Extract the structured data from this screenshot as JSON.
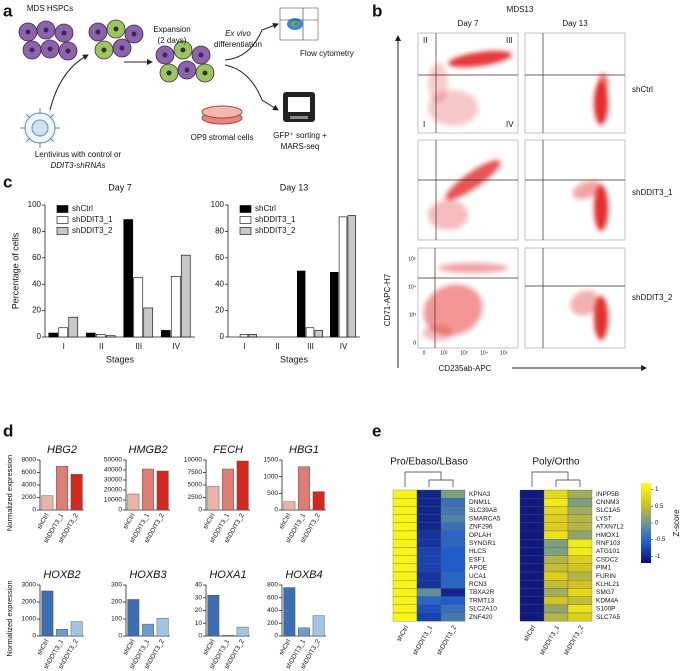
{
  "panel_labels": [
    "a",
    "b",
    "c",
    "d",
    "e"
  ],
  "diagram_a": {
    "source": "MDS HSPCs",
    "expansion": [
      "Expansion",
      "(2 days)"
    ],
    "differentiation": [
      "Ex vivo",
      "differentiation"
    ],
    "flow": "Flow cytometry",
    "stroma": "OP9 stromal cells",
    "sorting": [
      "GFP⁺ sorting +",
      "MARS-seq"
    ],
    "virus": [
      "Lentivirus with control or",
      "DDIT3-shRNAs"
    ]
  },
  "flow_b": {
    "title": "MDS13",
    "columns": [
      "Day 7",
      "Day 13"
    ],
    "rows": [
      "shCtrl",
      "shDDIT3_1",
      "shDDIT3_2"
    ],
    "quadrants": [
      "II",
      "III",
      "I",
      "IV"
    ],
    "y_label": "CD71-APC-H7",
    "x_label": "CD235ab-APC",
    "x_tick_labels": [
      "0",
      "10²",
      "10³",
      "10⁴",
      "10⁵"
    ],
    "y_tick_labels": [
      "0",
      "10³",
      "10⁴",
      "10⁵"
    ]
  },
  "chart_data": [
    {
      "type": "bar",
      "title": "Day 7",
      "x_label": "Stages",
      "y_label": "Percentage of cells",
      "categories": [
        "I",
        "II",
        "III",
        "IV"
      ],
      "ylim": [
        0,
        100
      ],
      "yticks": [
        0,
        20,
        40,
        60,
        80,
        100
      ],
      "series": [
        {
          "name": "shCtrl",
          "color": "#000000",
          "values": [
            3,
            3,
            89,
            5
          ]
        },
        {
          "name": "shDDIT3_1",
          "color": "#ffffff",
          "values": [
            7,
            2,
            45,
            46
          ]
        },
        {
          "name": "shDDIT3_2",
          "color": "#c8c8c8",
          "values": [
            15,
            1,
            22,
            62
          ]
        }
      ]
    },
    {
      "type": "bar",
      "title": "Day 13",
      "x_label": "Stages",
      "categories": [
        "I",
        "II",
        "III",
        "IV"
      ],
      "ylim": [
        0,
        100
      ],
      "yticks": [
        0,
        20,
        40,
        60,
        80,
        100
      ],
      "series": [
        {
          "name": "shCtrl",
          "color": "#000000",
          "values": [
            0,
            0,
            50,
            49
          ]
        },
        {
          "name": "shDDIT3_1",
          "color": "#ffffff",
          "values": [
            2,
            0,
            7,
            91
          ]
        },
        {
          "name": "shDDIT3_2",
          "color": "#c8c8c8",
          "values": [
            2,
            0,
            5,
            92
          ]
        }
      ]
    },
    {
      "type": "bar",
      "title": "HBG2",
      "y_label": "Normalized expression",
      "categories": [
        "shCtrl",
        "shDDIT3_1",
        "shDDIT3_2"
      ],
      "values": [
        2300,
        7000,
        5700
      ],
      "colors": [
        "#e9b3a8",
        "#de7d74",
        "#d3281f"
      ],
      "ylim": [
        0,
        8000
      ],
      "yticks": [
        0,
        2000,
        4000,
        6000,
        8000
      ]
    },
    {
      "type": "bar",
      "title": "HMGB2",
      "categories": [
        "shCtrl",
        "shDDIT3_1",
        "shDDIT3_2"
      ],
      "values": [
        16000,
        41000,
        39000
      ],
      "colors": [
        "#e9b3a8",
        "#de7d74",
        "#d3281f"
      ],
      "ylim": [
        0,
        50000
      ],
      "yticks": [
        0,
        10000,
        20000,
        30000,
        40000,
        50000
      ]
    },
    {
      "type": "bar",
      "title": "FECH",
      "categories": [
        "shCtrl",
        "shDDIT3_1",
        "shDDIT3_2"
      ],
      "values": [
        4700,
        8200,
        9800
      ],
      "colors": [
        "#e9b3a8",
        "#de7d74",
        "#d3281f"
      ],
      "ylim": [
        0,
        10000
      ],
      "yticks": [
        0,
        2500,
        5000,
        7500,
        10000
      ]
    },
    {
      "type": "bar",
      "title": "HBG1",
      "categories": [
        "shCtrl",
        "shDDIT3_1",
        "shDDIT3_2"
      ],
      "values": [
        250,
        1300,
        550
      ],
      "colors": [
        "#e9b3a8",
        "#de7d74",
        "#d3281f"
      ],
      "ylim": [
        0,
        1500
      ],
      "yticks": [
        0,
        500,
        1000,
        1500
      ]
    },
    {
      "type": "bar",
      "title": "HOXB2",
      "y_label": "Normalized expression",
      "categories": [
        "shCtrl",
        "shDDIT3_1",
        "shDDIT3_2"
      ],
      "values": [
        2650,
        400,
        850
      ],
      "colors": [
        "#3d6eb4",
        "#6d9dd1",
        "#a3c4e3"
      ],
      "ylim": [
        0,
        3000
      ],
      "yticks": [
        0,
        1000,
        2000,
        3000
      ]
    },
    {
      "type": "bar",
      "title": "HOXB3",
      "categories": [
        "shCtrl",
        "shDDIT3_1",
        "shDDIT3_2"
      ],
      "values": [
        215,
        70,
        105
      ],
      "colors": [
        "#3d6eb4",
        "#6d9dd1",
        "#a3c4e3"
      ],
      "ylim": [
        0,
        300
      ],
      "yticks": [
        0,
        100,
        200,
        300
      ]
    },
    {
      "type": "bar",
      "title": "HOXA1",
      "categories": [
        "shCtrl",
        "shDDIT3_1",
        "shDDIT3_2"
      ],
      "values": [
        32,
        0.5,
        7
      ],
      "colors": [
        "#3d6eb4",
        "#6d9dd1",
        "#a3c4e3"
      ],
      "ylim": [
        0,
        40
      ],
      "yticks": [
        0,
        10,
        20,
        30,
        40
      ]
    },
    {
      "type": "bar",
      "title": "HOXB4",
      "categories": [
        "shCtrl",
        "shDDIT3_1",
        "shDDIT3_2"
      ],
      "values": [
        760,
        130,
        320
      ],
      "colors": [
        "#3d6eb4",
        "#6d9dd1",
        "#a3c4e3"
      ],
      "ylim": [
        0,
        800
      ],
      "yticks": [
        0,
        200,
        400,
        600,
        800
      ]
    },
    {
      "type": "heatmap",
      "title": "Pro/Ebaso/LBaso",
      "columns": [
        "shCtrl",
        "shDDIT3_1",
        "shDDIT3_2"
      ],
      "rows": [
        "KPNA3",
        "DNM1L",
        "SLC39A8",
        "SMARCA5",
        "ZNF296",
        "OPLAH",
        "SYNGR1",
        "HLCS",
        "ESF1",
        "APOE",
        "UCA1",
        "RCN3",
        "TBXA2R",
        "TRMT13",
        "SLC2A10",
        "ZNF420"
      ],
      "values": [
        [
          1.1,
          -1.0,
          0.1
        ],
        [
          1.1,
          -1.0,
          -0.4
        ],
        [
          1.1,
          -1.0,
          -0.3
        ],
        [
          1.1,
          -1.0,
          -0.2
        ],
        [
          1.1,
          -1.0,
          -0.4
        ],
        [
          1.1,
          -0.9,
          -0.5
        ],
        [
          1.1,
          -0.9,
          -0.5
        ],
        [
          1.1,
          -0.8,
          -0.6
        ],
        [
          1.1,
          -0.8,
          -0.6
        ],
        [
          1.1,
          -0.8,
          -0.6
        ],
        [
          1.1,
          -0.9,
          -0.5
        ],
        [
          1.1,
          -0.9,
          -0.5
        ],
        [
          1.1,
          -0.1,
          -1.0
        ],
        [
          1.1,
          -0.5,
          -0.6
        ],
        [
          1.1,
          -0.7,
          -0.4
        ],
        [
          1.1,
          -0.8,
          -0.3
        ]
      ],
      "zlim": [
        -1.2,
        1.2
      ],
      "colorscale": [
        "#0c0c6e",
        "#1f5ccf",
        "#6c9694",
        "#d6c41e",
        "#ffff14"
      ]
    },
    {
      "type": "heatmap",
      "title": "Poly/Ortho",
      "columns": [
        "shCtrl",
        "shDDIT3_1",
        "shDDIT3_2"
      ],
      "rows": [
        "INPP5B",
        "CNNM3",
        "SLC1A5",
        "LYST",
        "ATXN7L2",
        "HMOX1",
        "RNF103",
        "ATG101",
        "CSDC2",
        "PIM1",
        "FURIN",
        "KLHL21",
        "SMG7",
        "KDM4A",
        "S100P",
        "SLC7A5"
      ],
      "values": [
        [
          -1.1,
          0.8,
          0.3
        ],
        [
          -1.1,
          1.0,
          0.1
        ],
        [
          -1.1,
          0.8,
          0.3
        ],
        [
          -1.1,
          0.7,
          0.4
        ],
        [
          -1.1,
          0.7,
          0.4
        ],
        [
          -1.1,
          0.9,
          0.2
        ],
        [
          -1.1,
          0.1,
          1.0
        ],
        [
          -1.1,
          0.1,
          1.0
        ],
        [
          -1.1,
          0.4,
          0.7
        ],
        [
          -1.1,
          0.5,
          0.6
        ],
        [
          -1.1,
          0.7,
          0.4
        ],
        [
          -1.1,
          0.5,
          0.6
        ],
        [
          -1.1,
          0.3,
          0.8
        ],
        [
          -1.1,
          0.6,
          0.5
        ],
        [
          -1.1,
          0.2,
          0.9
        ],
        [
          -1.1,
          0.4,
          0.7
        ]
      ],
      "zlim": [
        -1.2,
        1.2
      ],
      "colorscale": [
        "#0c0c6e",
        "#1f5ccf",
        "#6c9694",
        "#d6c41e",
        "#ffff14"
      ],
      "colorbar_label": "Z-score",
      "zticks": [
        1,
        0.5,
        0,
        -0.5,
        -1
      ]
    }
  ]
}
